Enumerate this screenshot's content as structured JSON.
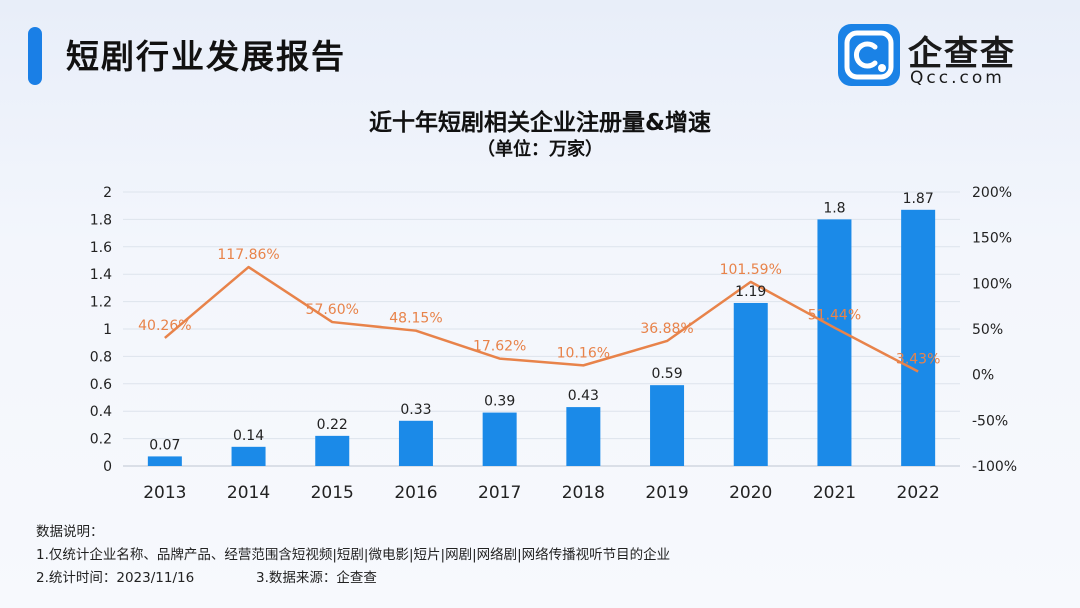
{
  "header": {
    "title": "短剧行业发展报告"
  },
  "logo": {
    "cn": "企查查",
    "en": "Qcc.com",
    "brand_color": "#1a82e6"
  },
  "chart_data": {
    "type": "bar+line",
    "title": "近十年短剧相关企业注册量&增速",
    "subtitle": "（单位：万家）",
    "categories": [
      "2013",
      "2014",
      "2015",
      "2016",
      "2017",
      "2018",
      "2019",
      "2020",
      "2021",
      "2022"
    ],
    "series": [
      {
        "name": "注册量",
        "type": "bar",
        "axis": "left",
        "color": "#1b8ae8",
        "values": [
          0.07,
          0.14,
          0.22,
          0.33,
          0.39,
          0.43,
          0.59,
          1.19,
          1.8,
          1.87
        ],
        "labels": [
          "0.07",
          "0.14",
          "0.22",
          "0.33",
          "0.39",
          "0.43",
          "0.59",
          "1.19",
          "1.8",
          "1.87"
        ]
      },
      {
        "name": "增速",
        "type": "line",
        "axis": "right",
        "color": "#e8834a",
        "values": [
          40.26,
          117.86,
          57.6,
          48.15,
          17.62,
          10.16,
          36.88,
          101.59,
          51.44,
          3.43
        ],
        "labels": [
          "40.26%",
          "117.86%",
          "57.60%",
          "48.15%",
          "17.62%",
          "10.16%",
          "36.88%",
          "101.59%",
          "51.44%",
          "3.43%"
        ]
      }
    ],
    "left_axis": {
      "ylim": [
        0,
        2
      ],
      "ticks": [
        "0",
        "0.2",
        "0.4",
        "0.6",
        "0.8",
        "1",
        "1.2",
        "1.4",
        "1.6",
        "1.8",
        "2"
      ]
    },
    "right_axis": {
      "ylim": [
        -100,
        200
      ],
      "ticks": [
        "-100%",
        "-50%",
        "0%",
        "50%",
        "100%",
        "150%",
        "200%"
      ]
    },
    "grid": true
  },
  "notes": {
    "heading": "数据说明：",
    "line1": "1.仅统计企业名称、品牌产品、经营范围含短视频|短剧|微电影|短片|网剧|网络剧|网络传播视听节目的企业",
    "line2a": "2.统计时间：2023/11/16",
    "line2b": "3.数据来源：企查查"
  }
}
